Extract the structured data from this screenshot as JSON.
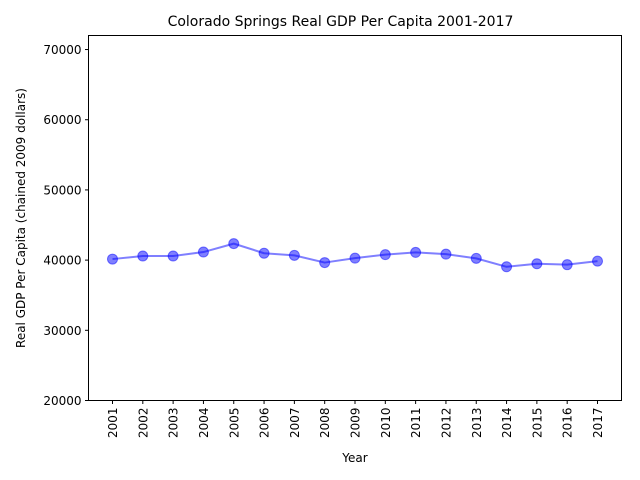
{
  "chart_data": {
    "type": "line",
    "title": "Colorado Springs Real GDP Per Capita 2001-2017",
    "xlabel": "Year",
    "ylabel": "Real GDP Per Capita (chained 2009 dollars)",
    "categories": [
      "2001",
      "2002",
      "2003",
      "2004",
      "2005",
      "2006",
      "2007",
      "2008",
      "2009",
      "2010",
      "2011",
      "2012",
      "2013",
      "2014",
      "2015",
      "2016",
      "2017"
    ],
    "series": [
      {
        "values": [
          40150,
          40580,
          40580,
          41150,
          42350,
          40980,
          40680,
          39650,
          40280,
          40780,
          41100,
          40850,
          40250,
          39050,
          39480,
          39350,
          39850
        ]
      }
    ],
    "ylim": [
      20000,
      72000
    ],
    "yticks": [
      20000,
      30000,
      40000,
      50000,
      60000,
      70000
    ],
    "color": "#0000ff",
    "grid": false
  }
}
